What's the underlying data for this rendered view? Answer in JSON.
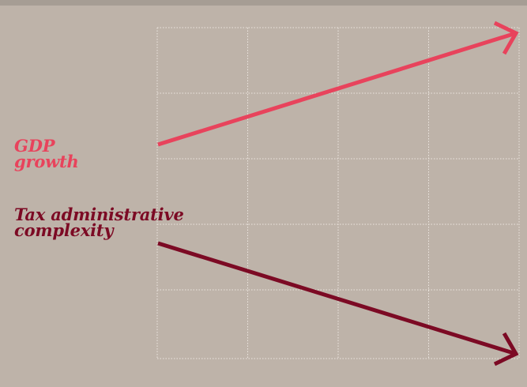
{
  "colors": {
    "background": "#beb3a9",
    "top_border": "#a69d94",
    "grid": "#ece6e0",
    "gdp": "#e8435c",
    "tax": "#7c0a24"
  },
  "labels": {
    "gdp": {
      "line1": "GDP",
      "line2": "growth"
    },
    "tax": {
      "line1": "Tax administrative",
      "line2": "complexity"
    }
  },
  "diagram": {
    "grid": {
      "columns": 4,
      "rows": 5
    },
    "arrows": [
      {
        "name": "gdp-growth-arrow",
        "direction": "up",
        "color_key": "gdp",
        "icon": "arrow-up-right-icon"
      },
      {
        "name": "tax-complexity-arrow",
        "direction": "down",
        "color_key": "tax",
        "icon": "arrow-down-right-icon"
      }
    ]
  }
}
